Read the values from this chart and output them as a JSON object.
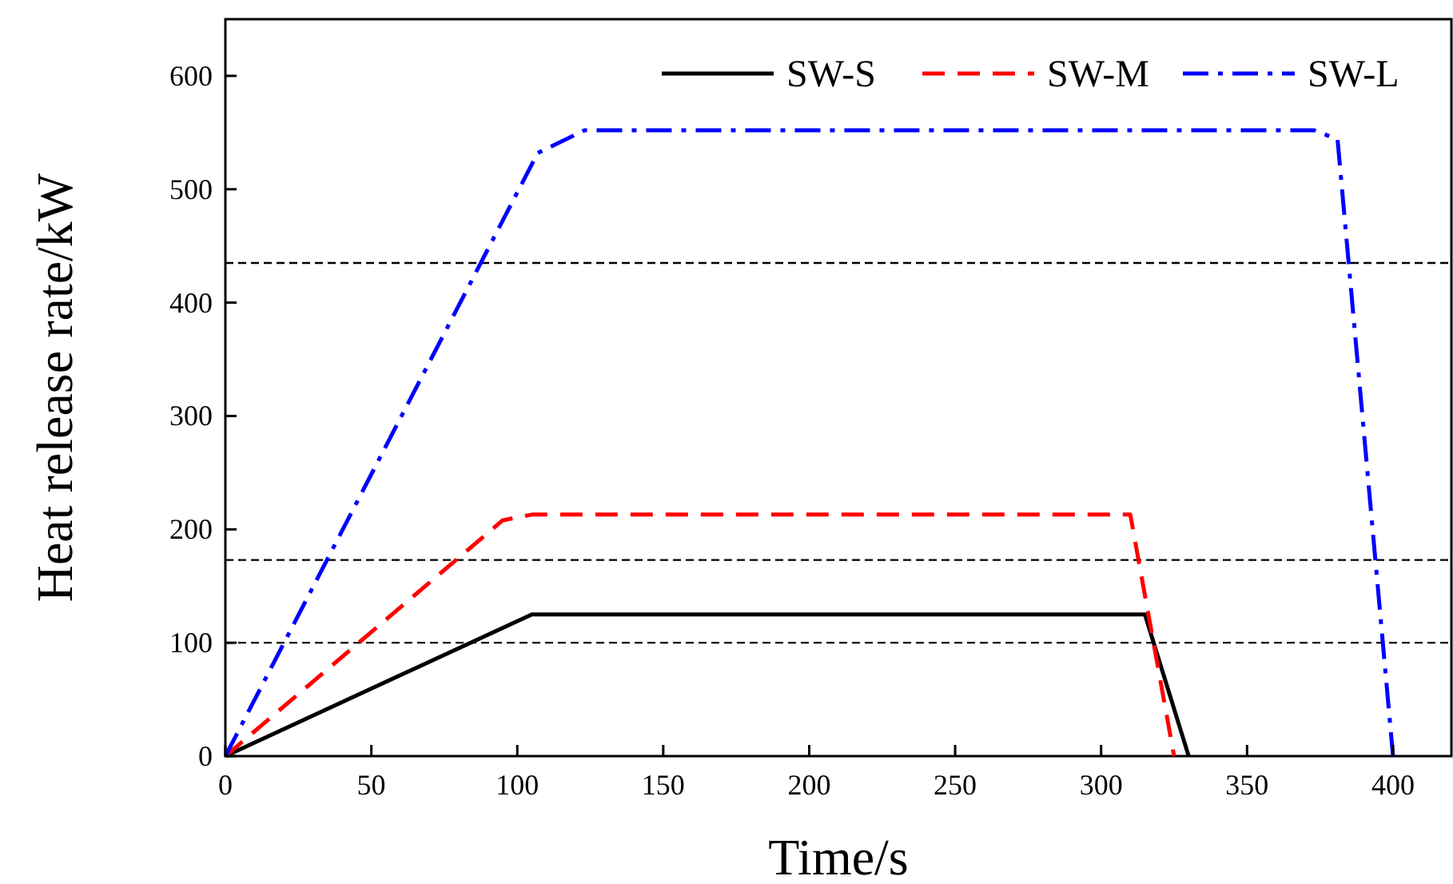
{
  "chart_data": {
    "type": "line",
    "xlabel": "Time/s",
    "ylabel": "Heat release rate/kW",
    "xlim": [
      0,
      420
    ],
    "ylim": [
      0,
      650
    ],
    "xticks": [
      0,
      50,
      100,
      150,
      200,
      250,
      300,
      350,
      400
    ],
    "yticks": [
      0,
      100,
      200,
      300,
      400,
      500,
      600
    ],
    "grid": false,
    "legend": "top right",
    "marker": "none",
    "series": [
      {
        "name": "SW-S",
        "color": "#000000",
        "line_style": "solid",
        "x": [
          0,
          105,
          315,
          330
        ],
        "values": [
          0,
          125,
          125,
          0
        ]
      },
      {
        "name": "SW-M",
        "color": "#ff0000",
        "line_style": "dashed",
        "x": [
          0,
          95,
          105,
          310,
          325
        ],
        "values": [
          0,
          208,
          213,
          213,
          0
        ]
      },
      {
        "name": "SW-L",
        "color": "#0000ff",
        "line_style": "dashdot",
        "x": [
          0,
          107,
          123,
          373,
          381,
          400
        ],
        "values": [
          0,
          532,
          552,
          552,
          544,
          0
        ]
      }
    ],
    "ref_lines": [
      {
        "axis": "y",
        "value": 435,
        "color": "#000000",
        "line_style": "dashed"
      },
      {
        "axis": "y",
        "value": 173,
        "color": "#000000",
        "line_style": "dashed"
      },
      {
        "axis": "y",
        "value": 100,
        "color": "#000000",
        "line_style": "dashed"
      }
    ]
  }
}
